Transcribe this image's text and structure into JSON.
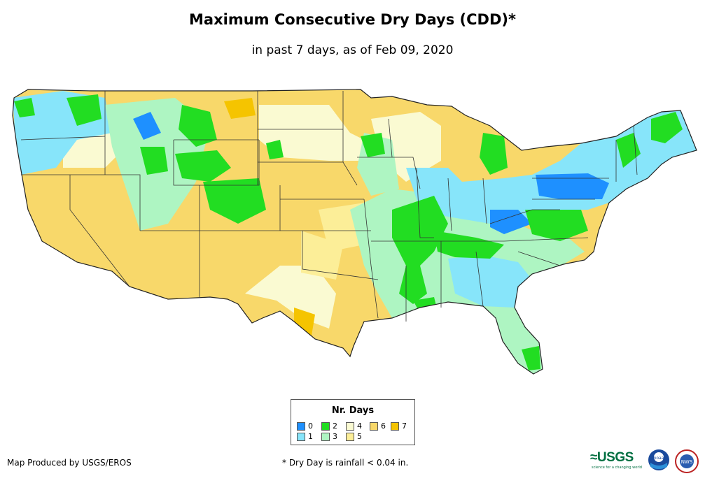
{
  "title": "Maximum Consecutive Dry Days (CDD)*",
  "subtitle": "in past 7 days, as of Feb 09, 2020",
  "legend": {
    "title": "Nr. Days",
    "items": [
      {
        "label": "0",
        "color": "#1e90ff"
      },
      {
        "label": "1",
        "color": "#87e5fa"
      },
      {
        "label": "2",
        "color": "#22dd22"
      },
      {
        "label": "3",
        "color": "#aef5c2"
      },
      {
        "label": "4",
        "color": "#fafad2"
      },
      {
        "label": "5",
        "color": "#fcee98"
      },
      {
        "label": "6",
        "color": "#f8d86a"
      },
      {
        "label": "7",
        "color": "#f5c400"
      }
    ]
  },
  "footer": {
    "credit": "Map Produced by USGS/EROS",
    "footnote": "* Dry Day is rainfall < 0.04 in.",
    "usgs_logo": "≈USGS",
    "usgs_tagline": "science for a changing world",
    "noaa_logo": "noaa",
    "nws_logo": "NWS"
  }
}
